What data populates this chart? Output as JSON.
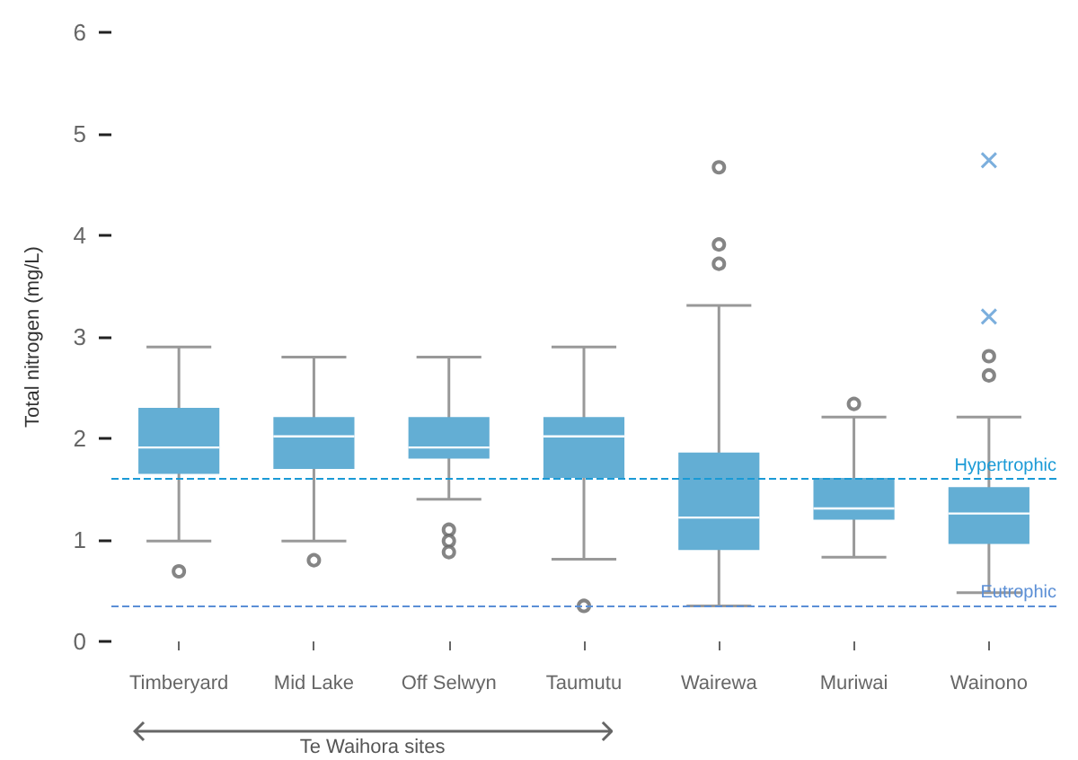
{
  "chart_data": {
    "type": "box",
    "ylabel": "Total nitrogen (mg/L)",
    "categories": [
      "Timberyard",
      "Mid Lake",
      "Off Selwyn",
      "Taumutu",
      "Wairewa",
      "Muriwai",
      "Wainono"
    ],
    "series": [
      {
        "type": "box",
        "color": "#63aed4",
        "boxes": [
          {
            "low": 0.99,
            "q1": 1.65,
            "median": 1.91,
            "q3": 2.3,
            "high": 2.9,
            "outliers": [
              0.69
            ]
          },
          {
            "low": 0.99,
            "q1": 1.7,
            "median": 2.02,
            "q3": 2.21,
            "high": 2.8,
            "outliers": [
              0.8
            ]
          },
          {
            "low": 1.4,
            "q1": 1.8,
            "median": 1.91,
            "q3": 2.21,
            "high": 2.8,
            "outliers": [
              1.1,
              0.99,
              0.88
            ]
          },
          {
            "low": 0.81,
            "q1": 1.61,
            "median": 2.02,
            "q3": 2.21,
            "high": 2.9,
            "outliers": [
              0.35
            ]
          },
          {
            "low": 0.35,
            "q1": 0.9,
            "median": 1.22,
            "q3": 1.86,
            "high": 3.31,
            "outliers": [
              4.67,
              3.91,
              3.72
            ]
          },
          {
            "low": 0.83,
            "q1": 1.2,
            "median": 1.31,
            "q3": 1.61,
            "high": 2.21,
            "outliers": [
              2.34
            ]
          },
          {
            "low": 0.48,
            "q1": 0.96,
            "median": 1.26,
            "q3": 1.52,
            "high": 2.21,
            "outliers": [
              2.81,
              2.62
            ]
          }
        ]
      },
      {
        "type": "scatter",
        "marker": "cross",
        "color": "#5b9bd5",
        "x": [
          "Wainono",
          "Wainono"
        ],
        "values": [
          4.74,
          3.2
        ]
      }
    ],
    "ylim": [
      0,
      6
    ],
    "yticks": [
      0,
      1,
      2,
      3,
      4,
      5,
      6
    ],
    "grid": false,
    "ref_lines": [
      {
        "axis": "y",
        "value": 1.6,
        "label": "Hypertrophic",
        "color": "#1a9ad6",
        "line_style": "dashed"
      },
      {
        "axis": "y",
        "value": 0.35,
        "label": "Eutrophic",
        "color": "#5b8fd6",
        "line_style": "dashed"
      }
    ],
    "annotations": [
      "Te Waihora sites"
    ]
  }
}
